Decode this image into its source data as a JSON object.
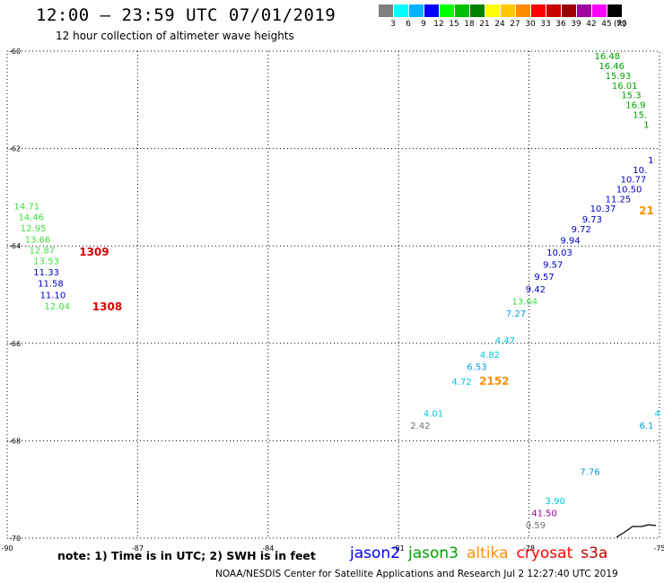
{
  "title": "12:00 – 23:59 UTC 07/01/2019",
  "subtitle": "12 hour collection of altimeter wave heights",
  "scale": {
    "unit": "(ft)",
    "bins": [
      {
        "label": "3",
        "color": "#808080"
      },
      {
        "label": "6",
        "color": "#00ffff"
      },
      {
        "label": "9",
        "color": "#00b4ff"
      },
      {
        "label": "12",
        "color": "#0000ff"
      },
      {
        "label": "15",
        "color": "#00ff00"
      },
      {
        "label": "18",
        "color": "#00c000"
      },
      {
        "label": "21",
        "color": "#008000"
      },
      {
        "label": "24",
        "color": "#ffff00"
      },
      {
        "label": "27",
        "color": "#ffc800"
      },
      {
        "label": "30",
        "color": "#ff8c00"
      },
      {
        "label": "33",
        "color": "#ff0000"
      },
      {
        "label": "36",
        "color": "#c80000"
      },
      {
        "label": "39",
        "color": "#a00000"
      },
      {
        "label": "42",
        "color": "#a000a0"
      },
      {
        "label": "45",
        "color": "#ff00ff"
      },
      {
        "label": "70",
        "color": "#000000"
      }
    ]
  },
  "axes": {
    "lon_labels": [
      "-90",
      "-87",
      "-84",
      "-81",
      "-78",
      "-75"
    ],
    "lat_labels": [
      "-60",
      "-62",
      "-64",
      "-66",
      "-68",
      "-70"
    ],
    "lon_range": [
      -90,
      -75
    ],
    "lat_range": [
      -60,
      -70
    ],
    "grid": "dotted"
  },
  "readings": [
    {
      "text": "16.48",
      "lon": -76.2,
      "lat": -60.17,
      "color": "#00a000"
    },
    {
      "text": "16.46",
      "lon": -76.1,
      "lat": -60.37,
      "color": "#00a000"
    },
    {
      "text": "15.93",
      "lon": -75.95,
      "lat": -60.57,
      "color": "#00a000"
    },
    {
      "text": "16.01",
      "lon": -75.8,
      "lat": -60.77,
      "color": "#00a000"
    },
    {
      "text": "15.3",
      "lon": -75.65,
      "lat": -60.97,
      "color": "#00a000"
    },
    {
      "text": "16.9",
      "lon": -75.55,
      "lat": -61.17,
      "color": "#00a000"
    },
    {
      "text": "15.",
      "lon": -75.45,
      "lat": -61.37,
      "color": "#00a000"
    },
    {
      "text": "1",
      "lon": -75.3,
      "lat": -61.57,
      "color": "#00a000"
    },
    {
      "text": "1",
      "lon": -75.2,
      "lat": -62.3,
      "color": "#0000c0"
    },
    {
      "text": "10.",
      "lon": -75.45,
      "lat": -62.5,
      "color": "#0000c0"
    },
    {
      "text": "10.77",
      "lon": -75.6,
      "lat": -62.7,
      "color": "#0000c0"
    },
    {
      "text": "10.50",
      "lon": -75.7,
      "lat": -62.9,
      "color": "#0000c0"
    },
    {
      "text": "11.25",
      "lon": -75.95,
      "lat": -63.1,
      "color": "#0000c0"
    },
    {
      "text": "10.37",
      "lon": -76.3,
      "lat": -63.3,
      "color": "#0000c0"
    },
    {
      "text": "9.73",
      "lon": -76.55,
      "lat": -63.52,
      "color": "#0000c0"
    },
    {
      "text": "9.72",
      "lon": -76.8,
      "lat": -63.72,
      "color": "#0000c0"
    },
    {
      "text": "9.94",
      "lon": -77.05,
      "lat": -63.95,
      "color": "#0000c0"
    },
    {
      "text": "10.03",
      "lon": -77.3,
      "lat": -64.2,
      "color": "#0000c0"
    },
    {
      "text": "9.57",
      "lon": -77.45,
      "lat": -64.45,
      "color": "#0000c0"
    },
    {
      "text": "9.57",
      "lon": -77.65,
      "lat": -64.7,
      "color": "#0000c0"
    },
    {
      "text": "9.42",
      "lon": -77.85,
      "lat": -64.95,
      "color": "#0000c0"
    },
    {
      "text": "13.64",
      "lon": -78.1,
      "lat": -65.2,
      "color": "#40e040"
    },
    {
      "text": "7.27",
      "lon": -78.3,
      "lat": -65.45,
      "color": "#00a0e0"
    },
    {
      "text": "4.47",
      "lon": -78.55,
      "lat": -66.0,
      "color": "#00c8e0"
    },
    {
      "text": "4.82",
      "lon": -78.9,
      "lat": -66.3,
      "color": "#00c8e0"
    },
    {
      "text": "6.53",
      "lon": -79.2,
      "lat": -66.55,
      "color": "#00a0e0"
    },
    {
      "text": "4.72",
      "lon": -79.55,
      "lat": -66.85,
      "color": "#00c8e0"
    },
    {
      "text": "4.01",
      "lon": -80.2,
      "lat": -67.5,
      "color": "#00c8e0"
    },
    {
      "text": "2.42",
      "lon": -80.5,
      "lat": -67.75,
      "color": "#707070"
    },
    {
      "text": "14.71",
      "lon": -89.55,
      "lat": -63.25,
      "color": "#40e040"
    },
    {
      "text": "14.46",
      "lon": -89.45,
      "lat": -63.47,
      "color": "#40e040"
    },
    {
      "text": "12.95",
      "lon": -89.4,
      "lat": -63.7,
      "color": "#40e040"
    },
    {
      "text": "13.66",
      "lon": -89.3,
      "lat": -63.93,
      "color": "#40e040"
    },
    {
      "text": "12.87",
      "lon": -89.2,
      "lat": -64.15,
      "color": "#40e040"
    },
    {
      "text": "13.53",
      "lon": -89.1,
      "lat": -64.37,
      "color": "#40e040"
    },
    {
      "text": "11.33",
      "lon": -89.1,
      "lat": -64.6,
      "color": "#0000c0"
    },
    {
      "text": "11.58",
      "lon": -89.0,
      "lat": -64.83,
      "color": "#0000c0"
    },
    {
      "text": "11.10",
      "lon": -88.95,
      "lat": -65.07,
      "color": "#0000c0"
    },
    {
      "text": "12.04",
      "lon": -88.85,
      "lat": -65.3,
      "color": "#40e040"
    },
    {
      "text": "7.76",
      "lon": -76.6,
      "lat": -68.7,
      "color": "#00a0e0"
    },
    {
      "text": "3.90",
      "lon": -77.4,
      "lat": -69.3,
      "color": "#00c8e0"
    },
    {
      "text": "41.50",
      "lon": -77.65,
      "lat": -69.55,
      "color": "#a000a0"
    },
    {
      "text": "0.59",
      "lon": -77.85,
      "lat": -69.8,
      "color": "#707070"
    },
    {
      "text": "4",
      "lon": -75.05,
      "lat": -67.5,
      "color": "#00c8e0"
    },
    {
      "text": "6.1",
      "lon": -75.3,
      "lat": -67.75,
      "color": "#00a0e0"
    }
  ],
  "pass_labels": [
    {
      "text": "1309",
      "lon": -88.0,
      "lat": -64.2,
      "color": "#e00000"
    },
    {
      "text": "1308",
      "lon": -87.7,
      "lat": -65.32,
      "color": "#e00000"
    },
    {
      "text": "2152",
      "lon": -78.8,
      "lat": -66.85,
      "color": "#ff9000"
    },
    {
      "text": "21",
      "lon": -75.3,
      "lat": -63.35,
      "color": "#ff9000"
    }
  ],
  "note": "note: 1) Time is in UTC; 2) SWH is in feet",
  "satellites": [
    {
      "name": "jason2",
      "color": "#0000ff"
    },
    {
      "name": "jason3",
      "color": "#00a000"
    },
    {
      "name": "altika",
      "color": "#ff9000"
    },
    {
      "name": "cryosat",
      "color": "#ff0000"
    },
    {
      "name": "s3a",
      "color": "#c00000"
    }
  ],
  "credit": "NOAA/NESDIS Center for Satellite Applications and Research    Jul  2 12:27:40 UTC 2019"
}
